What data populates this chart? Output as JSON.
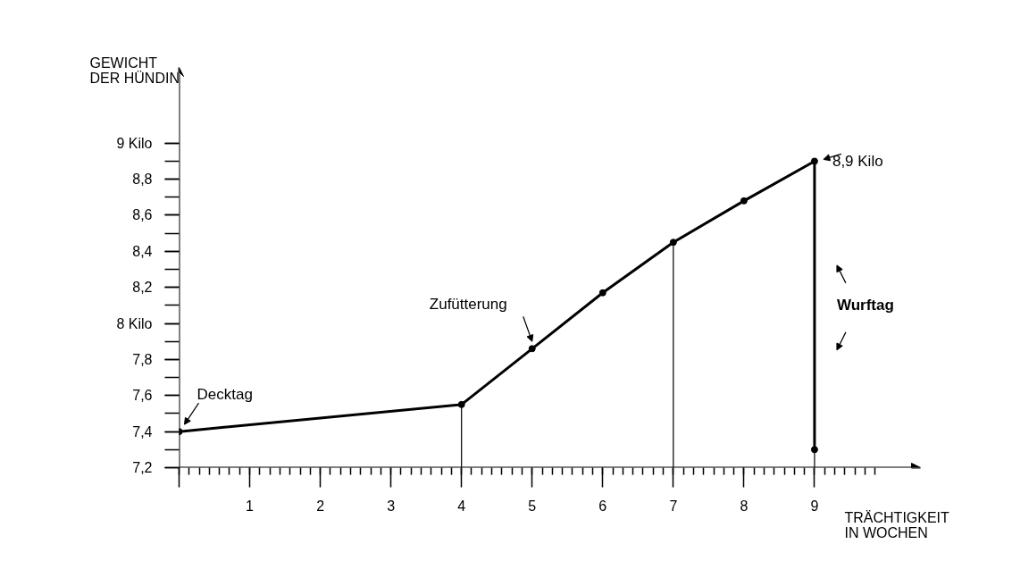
{
  "chart_data": {
    "type": "line",
    "xlabel": "TRÄCHTIGKEIT IN WOCHEN",
    "ylabel": "GEWICHT DER HÜNDIN",
    "series": [
      {
        "x": [
          0,
          4,
          5,
          6,
          7,
          8,
          9,
          9
        ],
        "values": [
          7.4,
          7.55,
          7.86,
          8.17,
          8.45,
          8.68,
          8.9,
          7.3
        ],
        "color": "#000000"
      }
    ],
    "xlim": [
      0,
      10.5
    ],
    "ylim": [
      7.2,
      9.42
    ],
    "xticks": [
      {
        "value": 0,
        "label": null
      },
      1,
      2,
      3,
      4,
      5,
      6,
      7,
      8,
      9
    ],
    "yticks": [
      {
        "value": 7.2,
        "label": "7,2"
      },
      {
        "value": 7.4,
        "label": "7,4"
      },
      {
        "value": 7.6,
        "label": "7,6"
      },
      {
        "value": 7.8,
        "label": "7,8"
      },
      {
        "value": 8,
        "label": "8 Kilo"
      },
      {
        "value": 8.2,
        "label": "8,2"
      },
      {
        "value": 8.4,
        "label": "8,4"
      },
      {
        "value": 8.6,
        "label": "8,6"
      },
      {
        "value": 8.8,
        "label": "8,8"
      },
      {
        "value": 9,
        "label": "9 Kilo"
      }
    ],
    "ref_lines": [
      {
        "axis": "x",
        "value": 4,
        "color": "#000000"
      },
      {
        "axis": "x",
        "value": 7,
        "color": "#000000"
      },
      {
        "axis": "x",
        "value": 9,
        "color": "#000000"
      }
    ],
    "annotations": [
      {
        "text": "Decktag",
        "x": 0,
        "y": 7.4
      },
      {
        "text": "Zufütterung",
        "x": 5,
        "y": 7.86
      },
      {
        "text": "8,9 Kilo",
        "x": 9,
        "y": 8.9
      },
      {
        "text": "Wurftag",
        "x": 9,
        "y": 8.1
      }
    ],
    "marker": "circle",
    "line_style": "solid",
    "grid": false
  }
}
